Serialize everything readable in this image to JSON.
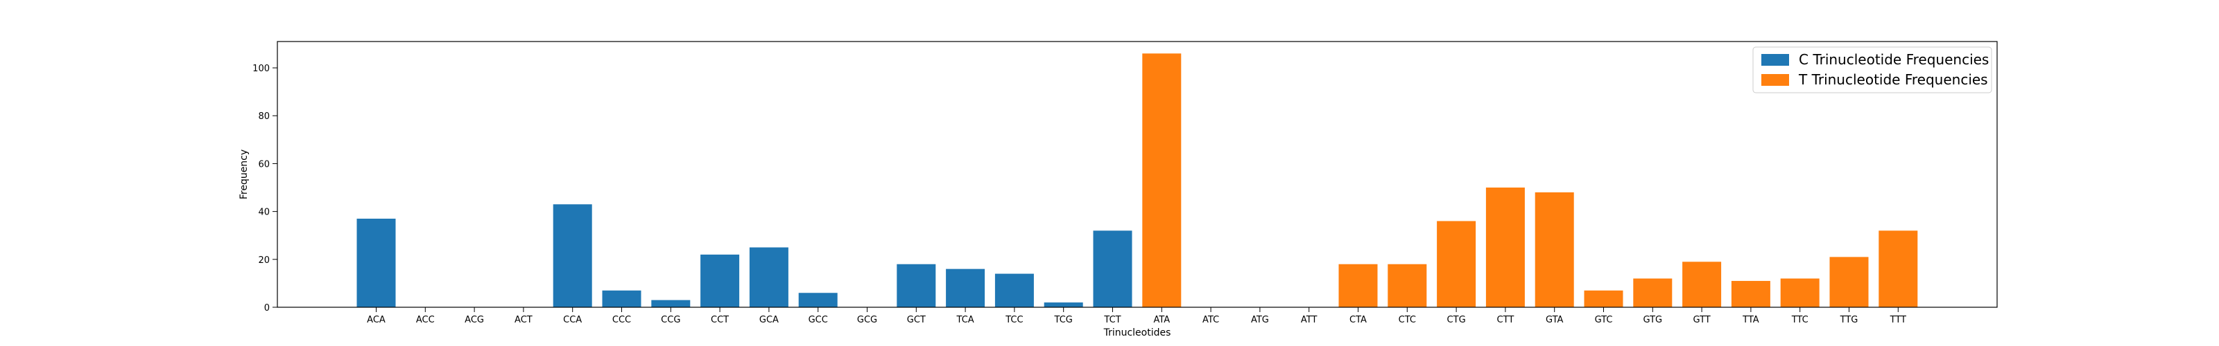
{
  "chart_data": {
    "type": "bar",
    "title": "",
    "xlabel": "Trinucleotides",
    "ylabel": "Frequency",
    "ylim": [
      0,
      111
    ],
    "yticks": [
      0,
      20,
      40,
      60,
      80,
      100
    ],
    "grid": false,
    "legend_position": "top-right",
    "categories": [
      "ACA",
      "ACC",
      "ACG",
      "ACT",
      "CCA",
      "CCC",
      "CCG",
      "CCT",
      "GCA",
      "GCC",
      "GCG",
      "GCT",
      "TCA",
      "TCC",
      "TCG",
      "TCT",
      "ATA",
      "ATC",
      "ATG",
      "ATT",
      "CTA",
      "CTC",
      "CTG",
      "CTT",
      "GTA",
      "GTC",
      "GTG",
      "GTT",
      "TTA",
      "TTC",
      "TTG",
      "TTT"
    ],
    "series": [
      {
        "name": "C Trinucleotide Frequencies",
        "color": "#1f77b4",
        "values": [
          37,
          0,
          0,
          0,
          43,
          7,
          3,
          22,
          25,
          6,
          0,
          18,
          16,
          14,
          2,
          32,
          null,
          null,
          null,
          null,
          null,
          null,
          null,
          null,
          null,
          null,
          null,
          null,
          null,
          null,
          null,
          null
        ]
      },
      {
        "name": "T Trinucleotide Frequencies",
        "color": "#ff7f0e",
        "values": [
          null,
          null,
          null,
          null,
          null,
          null,
          null,
          null,
          null,
          null,
          null,
          null,
          null,
          null,
          null,
          null,
          106,
          0,
          0,
          0,
          18,
          18,
          36,
          50,
          48,
          7,
          12,
          19,
          11,
          12,
          21,
          32
        ]
      }
    ]
  }
}
